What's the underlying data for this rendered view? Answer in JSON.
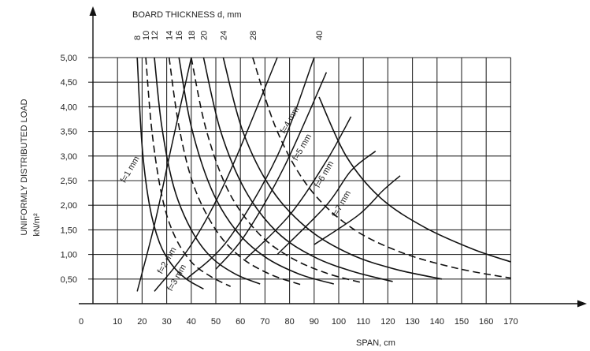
{
  "chart_data": {
    "type": "line",
    "top_title": "BOARD THICKNESS  d,  mm",
    "xlabel": "SPAN, cm",
    "ylabel_line1": "UNIFORMLY DISTRIBUTED LOAD",
    "ylabel_line2": "kN/m²",
    "origin_label": "0",
    "xlim": [
      0,
      175
    ],
    "ylim": [
      0,
      5.0
    ],
    "x_ticks": [
      0,
      10,
      20,
      30,
      40,
      50,
      60,
      70,
      80,
      90,
      100,
      110,
      120,
      130,
      140,
      150,
      160,
      170
    ],
    "x_tick_labels": [
      "0",
      "10",
      "20",
      "30",
      "40",
      "50",
      "60",
      "70",
      "80",
      "90",
      "100",
      "110",
      "120",
      "130",
      "140",
      "150",
      "160",
      "170"
    ],
    "y_ticks": [
      0.5,
      1.0,
      1.5,
      2.0,
      2.5,
      3.0,
      3.5,
      4.0,
      4.5,
      5.0
    ],
    "y_tick_labels": [
      "0,50",
      "1,00",
      "1,50",
      "2,00",
      "2,50",
      "3,00",
      "3,50",
      "4,00",
      "4,50",
      "5,00"
    ],
    "grid": true,
    "thickness_series": [
      {
        "name": "8",
        "x_at_top": 18,
        "style": "solid",
        "x": [
          18,
          20,
          23,
          27,
          32,
          38,
          45
        ],
        "y": [
          5.0,
          3.2,
          2.0,
          1.25,
          0.8,
          0.5,
          0.3
        ]
      },
      {
        "name": "10",
        "x_at_top": 21.5,
        "style": "dashed",
        "x": [
          21.5,
          24,
          28,
          33,
          40,
          48,
          56
        ],
        "y": [
          5.0,
          3.5,
          2.2,
          1.4,
          0.85,
          0.55,
          0.35
        ]
      },
      {
        "name": "12",
        "x_at_top": 25,
        "style": "solid",
        "x": [
          25,
          28,
          33,
          40,
          48,
          58,
          68
        ],
        "y": [
          5.0,
          3.6,
          2.35,
          1.5,
          0.95,
          0.6,
          0.4
        ]
      },
      {
        "name": "14",
        "x_at_top": 31,
        "style": "dashed",
        "x": [
          31,
          35,
          41,
          50,
          60,
          72,
          85
        ],
        "y": [
          5.0,
          3.6,
          2.4,
          1.5,
          0.95,
          0.6,
          0.38
        ]
      },
      {
        "name": "16",
        "x_at_top": 35,
        "style": "solid",
        "x": [
          35,
          40,
          48,
          58,
          70,
          84,
          98
        ],
        "y": [
          5.0,
          3.6,
          2.35,
          1.5,
          0.95,
          0.6,
          0.4
        ]
      },
      {
        "name": "18",
        "x_at_top": 40,
        "style": "dashed",
        "x": [
          40,
          46,
          55,
          67,
          80,
          95,
          110
        ],
        "y": [
          5.0,
          3.55,
          2.3,
          1.45,
          0.95,
          0.62,
          0.42
        ]
      },
      {
        "name": "20",
        "x_at_top": 45,
        "style": "solid",
        "x": [
          45,
          52,
          62,
          75,
          90,
          106,
          122
        ],
        "y": [
          5.0,
          3.5,
          2.3,
          1.45,
          0.95,
          0.65,
          0.45
        ]
      },
      {
        "name": "24",
        "x_at_top": 53,
        "style": "solid",
        "x": [
          53,
          61,
          73,
          88,
          105,
          123,
          142
        ],
        "y": [
          5.0,
          3.5,
          2.3,
          1.5,
          1.0,
          0.7,
          0.5
        ]
      },
      {
        "name": "28",
        "x_at_top": 65,
        "style": "dashed",
        "x": [
          65,
          75,
          88,
          105,
          125,
          148,
          170
        ],
        "y": [
          5.0,
          3.5,
          2.35,
          1.55,
          1.05,
          0.72,
          0.52
        ]
      },
      {
        "name": "40",
        "x_at_top": 92,
        "style": "solid",
        "x": [
          92,
          103,
          117,
          135,
          155,
          170
        ],
        "y": [
          4.2,
          3.0,
          2.15,
          1.55,
          1.1,
          0.85
        ]
      }
    ],
    "deflection_series": [
      {
        "name": "f=1 mm",
        "x": [
          18,
          25,
          32,
          40
        ],
        "y": [
          0.25,
          1.6,
          3.2,
          5.0
        ]
      },
      {
        "name": "f=2 mm",
        "x": [
          25,
          40,
          55,
          75
        ],
        "y": [
          0.25,
          1.2,
          2.6,
          5.0
        ]
      },
      {
        "name": "f=3 mm",
        "x": [
          38,
          55,
          75,
          90
        ],
        "y": [
          0.5,
          1.3,
          3.0,
          5.0
        ]
      },
      {
        "name": "f=4 mm",
        "x": [
          50,
          62,
          78,
          95
        ],
        "y": [
          0.7,
          1.4,
          2.8,
          4.7
        ]
      },
      {
        "name": "f=5 mm",
        "x": [
          62,
          80,
          95,
          105
        ],
        "y": [
          0.9,
          1.8,
          2.9,
          3.8
        ]
      },
      {
        "name": "f=6 mm",
        "x": [
          75,
          95,
          105,
          115
        ],
        "y": [
          1.0,
          2.0,
          2.7,
          3.1
        ]
      },
      {
        "name": "f=7 mm",
        "x": [
          90,
          108,
          118,
          125
        ],
        "y": [
          1.2,
          1.8,
          2.3,
          2.6
        ]
      }
    ],
    "deflection_labels": [
      {
        "text": "f=1 mm",
        "x": 16,
        "y": 2.7
      },
      {
        "text": "f=2 mm",
        "x": 31,
        "y": 0.85
      },
      {
        "text": "f=3 mm",
        "x": 35,
        "y": 0.5
      },
      {
        "text": "f=4 mm",
        "x": 81,
        "y": 3.7
      },
      {
        "text": "f=5 mm",
        "x": 86,
        "y": 3.15
      },
      {
        "text": "f=6 mm",
        "x": 95,
        "y": 2.6
      },
      {
        "text": "f=7 mm",
        "x": 102,
        "y": 2.0
      }
    ]
  }
}
